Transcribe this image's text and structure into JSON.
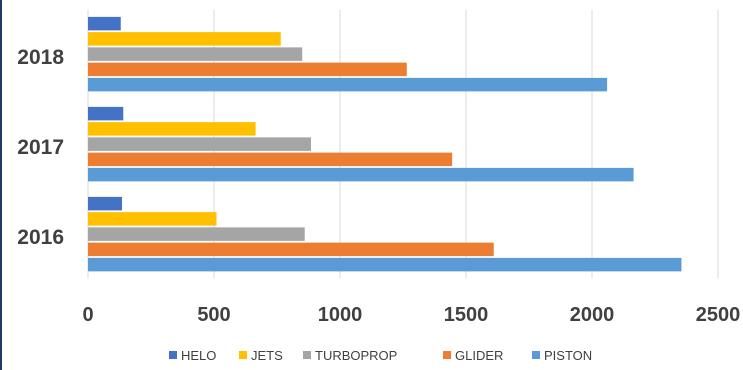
{
  "chart_data": {
    "type": "bar",
    "orientation": "horizontal",
    "categories": [
      "2016",
      "2017",
      "2018"
    ],
    "series": [
      {
        "name": "HELO",
        "values": [
          135,
          140,
          130
        ],
        "color": "#4472c4"
      },
      {
        "name": "JETS",
        "values": [
          510,
          665,
          765
        ],
        "color": "#ffc000"
      },
      {
        "name": "TURBOPROP",
        "values": [
          860,
          885,
          850
        ],
        "color": "#a5a5a5"
      },
      {
        "name": "GLIDER",
        "values": [
          1610,
          1445,
          1265
        ],
        "color": "#ed7d31"
      },
      {
        "name": "PISTON",
        "values": [
          2355,
          2165,
          2060
        ],
        "color": "#5b9bd5"
      }
    ],
    "xlim": [
      0,
      2500
    ],
    "x_ticks": [
      "0",
      "500",
      "1000",
      "1500",
      "2000",
      "2500"
    ],
    "grid": true,
    "legend_position": "bottom"
  }
}
